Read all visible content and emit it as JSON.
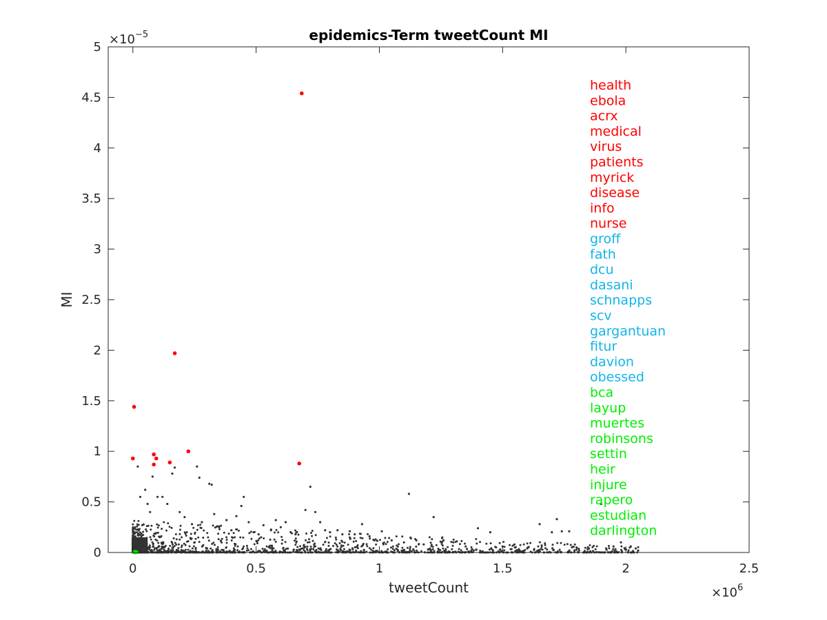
{
  "chart_data": {
    "type": "scatter",
    "title": "epidemics-Term tweetCount MI",
    "xlabel": "tweetCount",
    "ylabel": "MI",
    "xlim": [
      -0.1,
      2.5
    ],
    "ylim": [
      0,
      5
    ],
    "x_ticks": [
      0,
      0.5,
      1,
      1.5,
      2,
      2.5
    ],
    "x_tick_labels": [
      "0",
      "0.5",
      "1",
      "1.5",
      "2",
      "2.5"
    ],
    "y_ticks": [
      0,
      0.5,
      1,
      1.5,
      2,
      2.5,
      3,
      3.5,
      4,
      4.5,
      5
    ],
    "y_tick_labels": [
      "0",
      "0.5",
      "1",
      "1.5",
      "2",
      "2.5",
      "3",
      "3.5",
      "4",
      "4.5",
      "5"
    ],
    "x_multiplier": {
      "base": "×10",
      "exponent": "6"
    },
    "y_multiplier": {
      "base": "×10",
      "exponent": "−5"
    },
    "grid": false,
    "series": [
      {
        "color": "#333333",
        "points": [
          [
            0.02,
            0.85
          ],
          [
            0.03,
            0.55
          ],
          [
            0.05,
            0.62
          ],
          [
            0.06,
            0.48
          ],
          [
            0.07,
            0.4
          ],
          [
            0.08,
            0.75
          ],
          [
            0.1,
            0.55
          ],
          [
            0.12,
            0.55
          ],
          [
            0.14,
            0.48
          ],
          [
            0.16,
            0.78
          ],
          [
            0.17,
            0.84
          ],
          [
            0.19,
            0.4
          ],
          [
            0.21,
            0.35
          ],
          [
            0.24,
            0.28
          ],
          [
            0.26,
            0.85
          ],
          [
            0.27,
            0.74
          ],
          [
            0.28,
            0.3
          ],
          [
            0.31,
            0.68
          ],
          [
            0.32,
            0.67
          ],
          [
            0.33,
            0.38
          ],
          [
            0.35,
            0.25
          ],
          [
            0.38,
            0.32
          ],
          [
            0.4,
            0.22
          ],
          [
            0.42,
            0.36
          ],
          [
            0.44,
            0.46
          ],
          [
            0.45,
            0.55
          ],
          [
            0.47,
            0.3
          ],
          [
            0.49,
            0.2
          ],
          [
            0.51,
            0.18
          ],
          [
            0.53,
            0.27
          ],
          [
            0.56,
            0.22
          ],
          [
            0.58,
            0.32
          ],
          [
            0.6,
            0.25
          ],
          [
            0.62,
            0.3
          ],
          [
            0.64,
            0.2
          ],
          [
            0.66,
            0.18
          ],
          [
            0.7,
            0.42
          ],
          [
            0.72,
            0.65
          ],
          [
            0.74,
            0.4
          ],
          [
            0.76,
            0.3
          ],
          [
            0.78,
            0.22
          ],
          [
            0.8,
            0.2
          ],
          [
            0.83,
            0.22
          ],
          [
            0.85,
            0.18
          ],
          [
            0.88,
            0.21
          ],
          [
            0.9,
            0.18
          ],
          [
            0.93,
            0.28
          ],
          [
            0.96,
            0.16
          ],
          [
            0.98,
            0.12
          ],
          [
            1.01,
            0.21
          ],
          [
            1.05,
            0.12
          ],
          [
            1.1,
            0.1
          ],
          [
            1.12,
            0.58
          ],
          [
            1.15,
            0.12
          ],
          [
            1.18,
            0.08
          ],
          [
            1.22,
            0.35
          ],
          [
            1.26,
            0.12
          ],
          [
            1.3,
            0.1
          ],
          [
            1.35,
            0.06
          ],
          [
            1.4,
            0.24
          ],
          [
            1.45,
            0.2
          ],
          [
            1.5,
            0.06
          ],
          [
            1.55,
            0.05
          ],
          [
            1.6,
            0.04
          ],
          [
            1.65,
            0.28
          ],
          [
            1.7,
            0.2
          ],
          [
            1.72,
            0.33
          ],
          [
            1.74,
            0.21
          ],
          [
            1.77,
            0.21
          ],
          [
            1.8,
            0.05
          ],
          [
            1.85,
            0.04
          ],
          [
            1.9,
            0.48
          ],
          [
            1.92,
            0.04
          ],
          [
            1.95,
            0.06
          ],
          [
            1.98,
            0.1
          ],
          [
            2.0,
            0.03
          ],
          [
            2.02,
            0.06
          ],
          [
            2.04,
            0.04
          ],
          [
            2.05,
            0.02
          ]
        ]
      },
      {
        "color": "#ff0000",
        "points": [
          [
            0.685,
            4.54
          ],
          [
            0.17,
            1.97
          ],
          [
            0.005,
            1.44
          ],
          [
            0.225,
            1.0
          ],
          [
            0.085,
            0.97
          ],
          [
            0.095,
            0.93
          ],
          [
            0.0,
            0.93
          ],
          [
            0.15,
            0.89
          ],
          [
            0.675,
            0.88
          ],
          [
            0.085,
            0.87
          ]
        ]
      },
      {
        "color": "#00ee00",
        "points": [
          [
            0.005,
            0.005
          ],
          [
            0.008,
            0.004
          ],
          [
            0.01,
            0.003
          ],
          [
            0.012,
            0.004
          ],
          [
            0.006,
            0.002
          ],
          [
            0.015,
            0.003
          ],
          [
            0.009,
            0.002
          ],
          [
            0.011,
            0.005
          ],
          [
            0.013,
            0.002
          ],
          [
            0.007,
            0.003
          ]
        ]
      }
    ],
    "annotations": [
      {
        "text": "health",
        "color": "#ff0000"
      },
      {
        "text": "ebola",
        "color": "#ff0000"
      },
      {
        "text": "acrx",
        "color": "#ff0000"
      },
      {
        "text": "medical",
        "color": "#ff0000"
      },
      {
        "text": "virus",
        "color": "#ff0000"
      },
      {
        "text": "patients",
        "color": "#ff0000"
      },
      {
        "text": "myrick",
        "color": "#ff0000"
      },
      {
        "text": "disease",
        "color": "#ff0000"
      },
      {
        "text": "info",
        "color": "#ff0000"
      },
      {
        "text": "nurse",
        "color": "#ff0000"
      },
      {
        "text": "groff",
        "color": "#12b4e8"
      },
      {
        "text": "fath",
        "color": "#12b4e8"
      },
      {
        "text": "dcu",
        "color": "#12b4e8"
      },
      {
        "text": "dasani",
        "color": "#12b4e8"
      },
      {
        "text": "schnapps",
        "color": "#12b4e8"
      },
      {
        "text": "scv",
        "color": "#12b4e8"
      },
      {
        "text": "gargantuan",
        "color": "#12b4e8"
      },
      {
        "text": "fitur",
        "color": "#12b4e8"
      },
      {
        "text": "davion",
        "color": "#12b4e8"
      },
      {
        "text": "obessed",
        "color": "#12b4e8"
      },
      {
        "text": "bca",
        "color": "#00ee00"
      },
      {
        "text": "layup",
        "color": "#00ee00"
      },
      {
        "text": "muertes",
        "color": "#00ee00"
      },
      {
        "text": "robinsons",
        "color": "#00ee00"
      },
      {
        "text": "settin",
        "color": "#00ee00"
      },
      {
        "text": "heir",
        "color": "#00ee00"
      },
      {
        "text": "injure",
        "color": "#00ee00"
      },
      {
        "text": "rapero",
        "color": "#00ee00"
      },
      {
        "text": "estudian",
        "color": "#00ee00"
      },
      {
        "text": "darlington",
        "color": "#00ee00"
      }
    ],
    "annotation_placement": "right"
  }
}
